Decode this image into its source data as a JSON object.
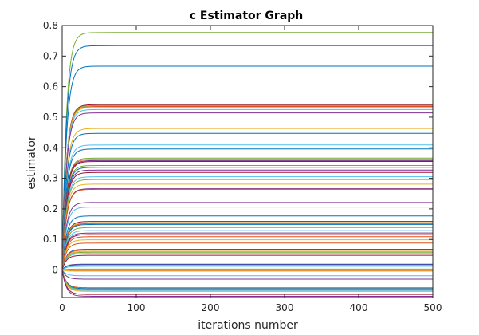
{
  "chart_data": {
    "type": "line",
    "title": "c Estimator Graph",
    "xlabel": "iterations number",
    "ylabel": "estimator",
    "xlim": [
      0,
      500
    ],
    "ylim": [
      -0.09,
      0.8
    ],
    "x_ticks": [
      0,
      100,
      200,
      300,
      400,
      500
    ],
    "x_tick_labels": [
      "0",
      "100",
      "200",
      "300",
      "400",
      "500"
    ],
    "y_ticks": [
      0,
      0.1,
      0.2,
      0.3,
      0.4,
      0.5,
      0.6,
      0.7,
      0.8
    ],
    "y_tick_labels": [
      "0",
      "0.1",
      "0.2",
      "0.3",
      "0.4",
      "0.5",
      "0.6",
      "0.7",
      "0.8"
    ],
    "grid": false,
    "legend": "none",
    "curve_model": "exponential rise from 0 at iteration 0 to a steady-state value within about 25 iterations, then constant through iteration 500",
    "series_colors": [
      "#0072BD",
      "#D95319",
      "#EDB120",
      "#7E2F8E",
      "#77AC30",
      "#4DBEEE",
      "#A2142F"
    ],
    "series": [
      {
        "final": 0.777,
        "color": "#77AC30"
      },
      {
        "final": 0.734,
        "color": "#0072BD"
      },
      {
        "final": 0.667,
        "color": "#0072BD"
      },
      {
        "final": 0.541,
        "color": "#A2142F"
      },
      {
        "final": 0.538,
        "color": "#77AC30"
      },
      {
        "final": 0.535,
        "color": "#D95319"
      },
      {
        "final": 0.532,
        "color": "#EDB120"
      },
      {
        "final": 0.525,
        "color": "#4DBEEE"
      },
      {
        "final": 0.514,
        "color": "#7E2F8E"
      },
      {
        "final": 0.463,
        "color": "#EDB120"
      },
      {
        "final": 0.447,
        "color": "#0072BD"
      },
      {
        "final": 0.409,
        "color": "#4DBEEE"
      },
      {
        "final": 0.396,
        "color": "#0072BD"
      },
      {
        "final": 0.366,
        "color": "#77AC30"
      },
      {
        "final": 0.362,
        "color": "#D95319"
      },
      {
        "final": 0.358,
        "color": "#7E2F8E"
      },
      {
        "final": 0.355,
        "color": "#A2142F"
      },
      {
        "final": 0.342,
        "color": "#77AC30"
      },
      {
        "final": 0.336,
        "color": "#0072BD"
      },
      {
        "final": 0.327,
        "color": "#7E2F8E"
      },
      {
        "final": 0.319,
        "color": "#A2142F"
      },
      {
        "final": 0.305,
        "color": "#4DBEEE"
      },
      {
        "final": 0.296,
        "color": "#77AC30"
      },
      {
        "final": 0.281,
        "color": "#EDB120"
      },
      {
        "final": 0.266,
        "color": "#7E2F8E"
      },
      {
        "final": 0.264,
        "color": "#D95319"
      },
      {
        "final": 0.221,
        "color": "#7E2F8E"
      },
      {
        "final": 0.206,
        "color": "#4DBEEE"
      },
      {
        "final": 0.177,
        "color": "#0072BD"
      },
      {
        "final": 0.159,
        "color": "#A2142F"
      },
      {
        "final": 0.155,
        "color": "#EDB120"
      },
      {
        "final": 0.152,
        "color": "#D95319"
      },
      {
        "final": 0.149,
        "color": "#0072BD"
      },
      {
        "final": 0.139,
        "color": "#77AC30"
      },
      {
        "final": 0.129,
        "color": "#4DBEEE"
      },
      {
        "final": 0.121,
        "color": "#7E2F8E"
      },
      {
        "final": 0.116,
        "color": "#A2142F"
      },
      {
        "final": 0.109,
        "color": "#D95319"
      },
      {
        "final": 0.099,
        "color": "#EDB120"
      },
      {
        "final": 0.088,
        "color": "#D95319"
      },
      {
        "final": 0.068,
        "color": "#0072BD"
      },
      {
        "final": 0.065,
        "color": "#D95319"
      },
      {
        "final": 0.061,
        "color": "#EDB120"
      },
      {
        "final": 0.058,
        "color": "#77AC30"
      },
      {
        "final": 0.054,
        "color": "#4DBEEE"
      },
      {
        "final": 0.048,
        "color": "#A2142F"
      },
      {
        "final": 0.019,
        "color": "#7E2F8E"
      },
      {
        "final": 0.017,
        "color": "#0072BD"
      },
      {
        "final": 0.012,
        "color": "#4DBEEE"
      },
      {
        "final": 0.003,
        "color": "#77AC30"
      },
      {
        "final": -0.001,
        "color": "#D95319"
      },
      {
        "final": -0.004,
        "color": "#EDB120"
      },
      {
        "final": -0.019,
        "color": "#4DBEEE"
      },
      {
        "final": -0.03,
        "color": "#7E2F8E"
      },
      {
        "final": -0.058,
        "color": "#D95319"
      },
      {
        "final": -0.061,
        "color": "#0072BD"
      },
      {
        "final": -0.064,
        "color": "#77AC30"
      },
      {
        "final": -0.067,
        "color": "#4DBEEE"
      },
      {
        "final": -0.07,
        "color": "#EDB120"
      },
      {
        "final": -0.08,
        "color": "#A2142F"
      },
      {
        "final": -0.086,
        "color": "#7E2F8E"
      }
    ]
  }
}
